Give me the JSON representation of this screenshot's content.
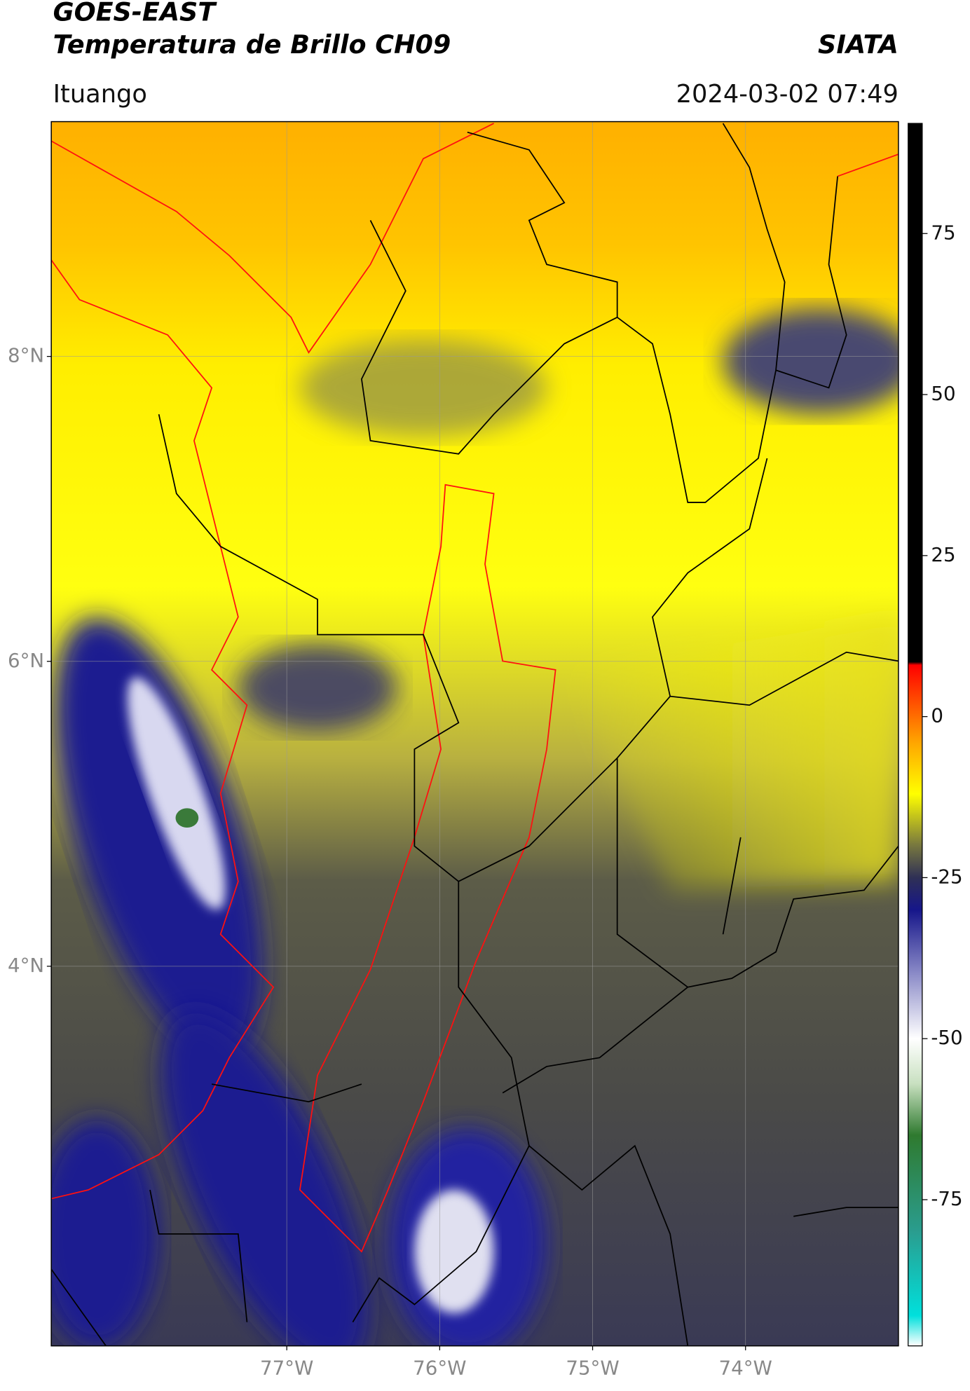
{
  "header": {
    "title_line1": "GOES-EAST",
    "title_line2": "Temperatura de Brillo CH09",
    "brand": "SIATA",
    "location": "Ituango",
    "timestamp": "2024-03-02 07:49"
  },
  "chart_data": {
    "type": "map",
    "lat_lim": [
      1.51,
      9.54
    ],
    "lat_ticks": [
      {
        "value": 8,
        "label": "8°N"
      },
      {
        "value": 6,
        "label": "6°N"
      },
      {
        "value": 4,
        "label": "4°N"
      }
    ],
    "lon_lim": [
      -78.54,
      -73.0
    ],
    "lon_ticks": [
      {
        "value": -77,
        "label": "77°W"
      },
      {
        "value": -76,
        "label": "76°W"
      },
      {
        "value": -75,
        "label": "75°W"
      },
      {
        "value": -74,
        "label": "74°W"
      }
    ],
    "grid": true,
    "colorbar": {
      "lim": [
        -97.7,
        92.1
      ],
      "ticks": [
        75,
        50,
        25,
        0,
        -25,
        -50,
        -75
      ],
      "stops": [
        {
          "value": -97.7,
          "color": "#ffffff"
        },
        {
          "value": -93,
          "color": "#00e0dc"
        },
        {
          "value": -80,
          "color": "#2a9d8f"
        },
        {
          "value": -65,
          "color": "#2f7a2f"
        },
        {
          "value": -57,
          "color": "#c8e0c0"
        },
        {
          "value": -50,
          "color": "#ffffff"
        },
        {
          "value": -40,
          "color": "#8c8cc8"
        },
        {
          "value": -30,
          "color": "#16168a"
        },
        {
          "value": -25,
          "color": "#2f3055"
        },
        {
          "value": -20,
          "color": "#77773f"
        },
        {
          "value": -12,
          "color": "#ffff00"
        },
        {
          "value": -4,
          "color": "#ffa500"
        },
        {
          "value": 8,
          "color": "#ff0000"
        },
        {
          "value": 8.5,
          "color": "#000000"
        },
        {
          "value": 92.1,
          "color": "#000000"
        }
      ]
    }
  }
}
